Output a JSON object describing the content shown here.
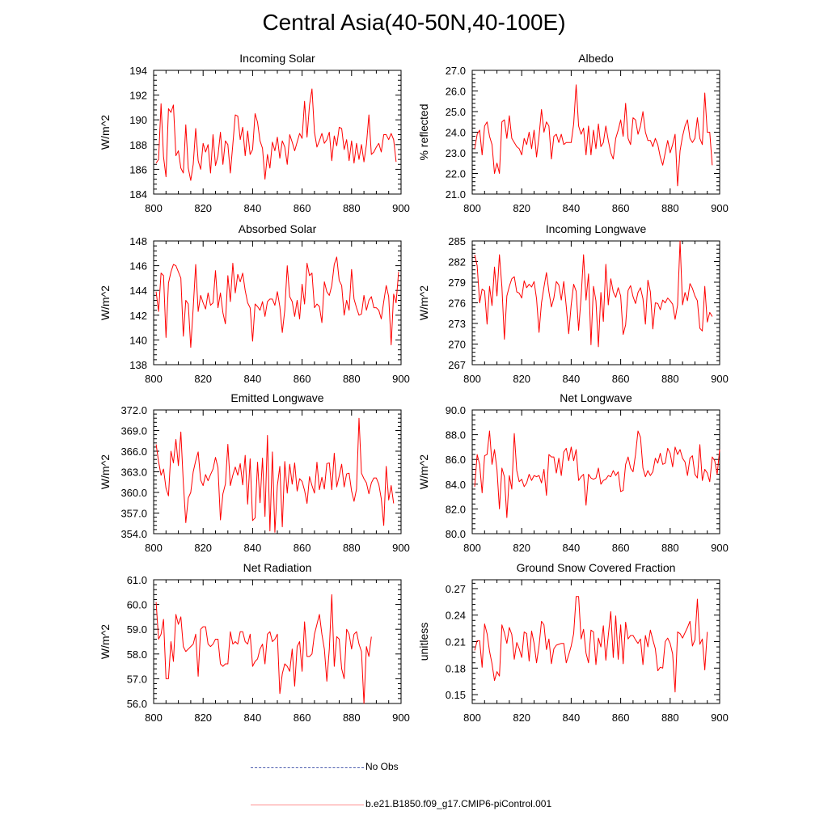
{
  "title": "Central Asia(40-50N,40-100E)",
  "colors": {
    "model": "#ff0000",
    "obs": "#5060b0",
    "axis": "#000000"
  },
  "legend": [
    {
      "label": "No Obs",
      "style": "dashed",
      "color": "#5060b0"
    },
    {
      "label": "b.e21.B1850.f09_g17.CMIP6-piControl.001",
      "style": "solid",
      "color": "#ff0000"
    }
  ],
  "chart_data": [
    {
      "type": "line",
      "title": "Incoming Solar",
      "ylabel": "W/m^2",
      "xlim": [
        800,
        900
      ],
      "xticks": [
        "800",
        "820",
        "840",
        "860",
        "880",
        "900"
      ],
      "ylim": [
        184,
        194
      ],
      "yticks": [
        "184",
        "186",
        "188",
        "190",
        "192",
        "194"
      ],
      "x_start": 801,
      "series": [
        {
          "name": "b.e21.B1850.f09_g17.CMIP6-piControl.001",
          "values": [
            186.5,
            186.8,
            191.3,
            187.0,
            185.4,
            190.9,
            190.6,
            191.2,
            187.1,
            187.5,
            186.1,
            185.7,
            189.6,
            186.1,
            185.1,
            186.4,
            189.3,
            186.7,
            186.0,
            188.1,
            187.4,
            188.0,
            185.7,
            188.8,
            186.3,
            187.1,
            189.0,
            186.4,
            188.3,
            188.0,
            185.7,
            188.0,
            190.4,
            190.3,
            188.4,
            189.4,
            187.1,
            189.1,
            187.2,
            187.6,
            190.5,
            189.8,
            188.3,
            187.7,
            185.2,
            187.2,
            186.1,
            188.2,
            187.5,
            188.6,
            186.9,
            188.3,
            187.8,
            186.4,
            188.8,
            188.2,
            187.5,
            188.2,
            188.9,
            188.5,
            191.5,
            188.6,
            191.2,
            192.5,
            189.0,
            187.8,
            188.3,
            188.9,
            188.1,
            188.4,
            189.0,
            186.7,
            188.7,
            187.9,
            189.4,
            189.3,
            187.6,
            188.4,
            186.7,
            188.3,
            186.5,
            188.1,
            186.8,
            188.0,
            186.6,
            188.0,
            190.4,
            187.2,
            187.4,
            187.8,
            188.1,
            187.4,
            188.8,
            188.8,
            188.4,
            188.9,
            188.4,
            186.6
          ]
        }
      ]
    },
    {
      "type": "line",
      "title": "Albedo",
      "ylabel": "% reflected",
      "xlim": [
        800,
        900
      ],
      "xticks": [
        "800",
        "820",
        "840",
        "860",
        "880",
        "900"
      ],
      "ylim": [
        21,
        27
      ],
      "yticks": [
        "21.0",
        "22.0",
        "23.0",
        "24.0",
        "25.0",
        "26.0",
        "27.0"
      ],
      "x_start": 801,
      "series": [
        {
          "name": "b.e21.B1850.f09_g17.CMIP6-piControl.001",
          "values": [
            23.2,
            23.9,
            24.1,
            22.9,
            24.3,
            24.5,
            23.8,
            23.4,
            22.0,
            22.5,
            22.0,
            24.5,
            24.6,
            23.7,
            24.8,
            23.7,
            23.5,
            23.3,
            23.2,
            22.9,
            23.7,
            23.4,
            24.0,
            23.2,
            24.1,
            22.8,
            23.8,
            25.1,
            24.0,
            24.5,
            24.3,
            22.7,
            23.8,
            23.9,
            23.5,
            23.9,
            23.4,
            23.5,
            23.5,
            23.5,
            24.4,
            26.3,
            24.3,
            23.9,
            24.2,
            22.9,
            24.3,
            22.9,
            24.1,
            23.2,
            24.4,
            23.3,
            23.5,
            24.3,
            23.6,
            23.0,
            22.7,
            23.7,
            24.1,
            24.6,
            23.8,
            25.4,
            23.7,
            23.4,
            24.7,
            24.6,
            23.9,
            24.3,
            25.0,
            24.0,
            23.6,
            23.6,
            23.3,
            23.7,
            23.4,
            22.8,
            22.4,
            23.0,
            23.6,
            23.0,
            23.4,
            23.9,
            21.4,
            23.1,
            23.8,
            24.3,
            24.6,
            23.7,
            23.5,
            23.7,
            24.7,
            23.7,
            23.4,
            25.9,
            24.0,
            24.0,
            22.4
          ]
        }
      ]
    },
    {
      "type": "line",
      "title": "Absorbed Solar",
      "ylabel": "W/m^2",
      "xlim": [
        800,
        900
      ],
      "xticks": [
        "800",
        "820",
        "840",
        "860",
        "880",
        "900"
      ],
      "ylim": [
        138,
        148
      ],
      "yticks": [
        "138",
        "140",
        "142",
        "144",
        "146",
        "148"
      ],
      "x_start": 801,
      "series": [
        {
          "name": "b.e21.B1850.f09_g17.CMIP6-piControl.001",
          "values": [
            143.9,
            142.3,
            145.4,
            145.2,
            140.2,
            144.6,
            145.5,
            146.1,
            146.0,
            145.5,
            145.0,
            140.3,
            143.2,
            142.9,
            139.4,
            142.6,
            146.1,
            142.3,
            143.6,
            143.0,
            142.5,
            143.8,
            142.8,
            143.0,
            145.6,
            142.6,
            143.8,
            142.2,
            141.3,
            145.2,
            143.1,
            146.2,
            143.8,
            145.3,
            144.7,
            145.4,
            144.0,
            143.0,
            142.6,
            139.9,
            142.9,
            142.7,
            142.4,
            143.1,
            141.9,
            143.1,
            143.3,
            143.3,
            142.8,
            143.9,
            142.7,
            140.6,
            142.4,
            146.0,
            143.5,
            143.1,
            141.9,
            143.2,
            141.7,
            144.5,
            142.9,
            146.2,
            145.2,
            145.4,
            142.6,
            142.9,
            142.7,
            141.4,
            144.7,
            143.9,
            143.6,
            144.4,
            146.1,
            146.7,
            144.8,
            144.4,
            142.0,
            143.2,
            142.4,
            145.7,
            143.3,
            142.6,
            142.0,
            142.1,
            143.6,
            142.4,
            143.2,
            143.5,
            142.6,
            142.6,
            142.4,
            141.7,
            143.1,
            144.4,
            143.5,
            139.6,
            143.7,
            143.0,
            145.5
          ]
        }
      ]
    },
    {
      "type": "line",
      "title": "Incoming Longwave",
      "ylabel": "W/m^2",
      "xlim": [
        800,
        900
      ],
      "xticks": [
        "800",
        "820",
        "840",
        "860",
        "880",
        "900"
      ],
      "ylim": [
        267,
        285
      ],
      "yticks": [
        "267",
        "270",
        "273",
        "276",
        "279",
        "282",
        "285"
      ],
      "x_start": 801,
      "series": [
        {
          "name": "b.e21.B1850.f09_g17.CMIP6-piControl.001",
          "values": [
            283.0,
            281.4,
            276.0,
            278.0,
            277.7,
            272.9,
            278.4,
            275.6,
            281.2,
            277.0,
            283.0,
            278.3,
            270.7,
            277.0,
            278.4,
            279.5,
            279.8,
            277.6,
            277.4,
            276.7,
            279.2,
            278.2,
            278.7,
            278.3,
            279.1,
            276.6,
            271.7,
            276.0,
            278.3,
            280.4,
            277.6,
            275.4,
            276.7,
            279.1,
            278.6,
            276.4,
            279.1,
            275.5,
            271.5,
            275.7,
            278.7,
            277.7,
            272.0,
            276.8,
            283.0,
            276.4,
            280.2,
            269.9,
            278.4,
            276.3,
            269.6,
            277.5,
            273.3,
            281.6,
            275.7,
            279.5,
            277.6,
            276.8,
            278.2,
            277.0,
            271.4,
            272.8,
            277.8,
            278.5,
            276.9,
            275.9,
            277.5,
            278.2,
            276.6,
            272.9,
            279.3,
            277.6,
            272.2,
            276.0,
            275.9,
            275.0,
            276.4,
            276.0,
            276.7,
            276.3,
            275.8,
            273.6,
            275.7,
            285.0,
            275.7,
            277.5,
            276.3,
            278.8,
            278.1,
            277.0,
            276.3,
            272.3,
            271.9,
            278.4,
            273.2,
            274.6,
            274.0
          ]
        }
      ]
    },
    {
      "type": "line",
      "title": "Emitted Longwave",
      "ylabel": "W/m^2",
      "xlim": [
        800,
        900
      ],
      "xticks": [
        "800",
        "820",
        "840",
        "860",
        "880",
        "900"
      ],
      "ylim": [
        354,
        372
      ],
      "yticks": [
        "354.0",
        "357.0",
        "360.0",
        "363.0",
        "366.0",
        "369.0",
        "372.0"
      ],
      "x_start": 801,
      "series": [
        {
          "name": "b.e21.B1850.f09_g17.CMIP6-piControl.001",
          "values": [
            367.0,
            364.5,
            362.5,
            363.4,
            360.6,
            359.5,
            366.0,
            364.3,
            367.7,
            363.9,
            368.8,
            361.4,
            355.6,
            359.2,
            360.0,
            363.0,
            364.6,
            365.9,
            361.8,
            361.0,
            362.6,
            361.7,
            362.6,
            363.4,
            365.1,
            363.6,
            356.0,
            359.8,
            361.2,
            367.0,
            361.0,
            362.5,
            363.7,
            362.5,
            364.2,
            361.1,
            365.4,
            358.3,
            364.9,
            355.9,
            356.3,
            364.4,
            358.5,
            365.0,
            356.5,
            368.3,
            354.4,
            365.9,
            354.2,
            361.0,
            363.8,
            355.0,
            364.5,
            359.9,
            364.1,
            361.2,
            364.3,
            360.2,
            362.0,
            361.6,
            360.3,
            358.4,
            362.3,
            361.0,
            359.9,
            364.4,
            360.4,
            362.2,
            360.5,
            364.2,
            364.3,
            360.4,
            365.7,
            360.8,
            362.4,
            364.1,
            360.8,
            362.7,
            362.8,
            360.2,
            358.7,
            360.5,
            370.8,
            362.8,
            362.0,
            361.4,
            359.8,
            361.4,
            362.1,
            362.1,
            361.2,
            359.1,
            355.2,
            363.8,
            358.9,
            361.0,
            358.4
          ]
        }
      ]
    },
    {
      "type": "line",
      "title": "Net Longwave",
      "ylabel": "W/m^2",
      "xlim": [
        800,
        900
      ],
      "xticks": [
        "800",
        "820",
        "840",
        "860",
        "880",
        "900"
      ],
      "ylim": [
        80,
        90
      ],
      "yticks": [
        "80.0",
        "82.0",
        "84.0",
        "86.0",
        "88.0",
        "90.0"
      ],
      "x_start": 801,
      "series": [
        {
          "name": "b.e21.B1850.f09_g17.CMIP6-piControl.001",
          "values": [
            83.8,
            86.4,
            85.6,
            83.3,
            86.3,
            86.4,
            88.3,
            85.6,
            86.8,
            85.2,
            82.0,
            85.3,
            84.6,
            81.3,
            84.7,
            83.6,
            88.1,
            85.1,
            84.2,
            84.4,
            83.8,
            84.1,
            84.8,
            84.3,
            84.7,
            84.6,
            84.7,
            84.1,
            85.2,
            83.1,
            86.4,
            86.2,
            86.2,
            84.9,
            86.1,
            84.7,
            86.6,
            86.9,
            85.9,
            87.0,
            85.9,
            86.8,
            84.3,
            84.6,
            84.8,
            82.3,
            84.8,
            84.5,
            84.4,
            84.5,
            85.3,
            84.0,
            84.3,
            84.4,
            84.7,
            84.6,
            85.1,
            84.7,
            85.0,
            83.4,
            83.5,
            85.6,
            86.2,
            85.3,
            85.0,
            86.4,
            88.3,
            87.8,
            85.3,
            84.6,
            85.1,
            84.7,
            85.0,
            86.1,
            85.7,
            86.5,
            85.6,
            85.7,
            86.9,
            86.5,
            85.4,
            87.0,
            86.4,
            86.8,
            86.1,
            85.8,
            84.7,
            86.1,
            86.3,
            84.8,
            84.5,
            87.2,
            84.3,
            85.2,
            84.9,
            84.2,
            86.2,
            85.9,
            84.8,
            86.8
          ]
        }
      ]
    },
    {
      "type": "line",
      "title": "Net Radiation",
      "ylabel": "W/m^2",
      "xlim": [
        800,
        900
      ],
      "xticks": [
        "800",
        "820",
        "840",
        "860",
        "880",
        "900"
      ],
      "ylim": [
        56,
        61
      ],
      "yticks": [
        "56.0",
        "57.0",
        "58.0",
        "59.0",
        "60.0",
        "61.0"
      ],
      "x_start": 801,
      "series": [
        {
          "name": "b.e21.B1850.f09_g17.CMIP6-piControl.001",
          "values": [
            60.1,
            58.6,
            58.8,
            59.4,
            57.0,
            57.0,
            58.5,
            57.7,
            59.6,
            59.2,
            59.5,
            58.3,
            58.1,
            58.2,
            58.3,
            58.4,
            58.8,
            57.1,
            59.0,
            59.1,
            59.1,
            58.4,
            58.3,
            58.4,
            58.6,
            58.6,
            57.6,
            57.5,
            57.6,
            57.6,
            58.9,
            58.4,
            58.5,
            58.4,
            58.9,
            58.9,
            58.5,
            58.4,
            58.8,
            57.5,
            57.7,
            57.8,
            58.2,
            58.4,
            57.6,
            58.8,
            58.9,
            58.5,
            58.6,
            58.8,
            56.4,
            57.2,
            57.6,
            57.5,
            57.3,
            58.2,
            56.7,
            58.3,
            58.5,
            57.3,
            59.3,
            57.9,
            57.9,
            58.0,
            58.8,
            59.2,
            59.6,
            58.8,
            58.2,
            56.9,
            58.2,
            60.4,
            57.5,
            58.7,
            58.6,
            57.4,
            57.0,
            59.0,
            58.8,
            58.2,
            58.8,
            58.9,
            58.4,
            58.1,
            56.0,
            58.3,
            57.9,
            58.7
          ]
        }
      ]
    },
    {
      "type": "line",
      "title": "Ground Snow Covered Fraction",
      "ylabel": "unitless",
      "xlim": [
        800,
        900
      ],
      "xticks": [
        "800",
        "820",
        "840",
        "860",
        "880",
        "900"
      ],
      "ylim": [
        0.14,
        0.28
      ],
      "yticks": [
        "0.15",
        "0.18",
        "0.21",
        "0.24",
        "0.27"
      ],
      "x_start": 801,
      "series": [
        {
          "name": "b.e21.B1850.f09_g17.CMIP6-piControl.001",
          "values": [
            0.2,
            0.211,
            0.211,
            0.181,
            0.23,
            0.219,
            0.199,
            0.185,
            0.166,
            0.176,
            0.171,
            0.229,
            0.22,
            0.208,
            0.226,
            0.218,
            0.19,
            0.209,
            0.202,
            0.192,
            0.221,
            0.219,
            0.188,
            0.222,
            0.208,
            0.186,
            0.205,
            0.233,
            0.229,
            0.201,
            0.213,
            0.185,
            0.202,
            0.206,
            0.207,
            0.208,
            0.208,
            0.186,
            0.195,
            0.205,
            0.219,
            0.261,
            0.261,
            0.213,
            0.224,
            0.197,
            0.186,
            0.223,
            0.221,
            0.184,
            0.214,
            0.204,
            0.228,
            0.189,
            0.217,
            0.244,
            0.192,
            0.239,
            0.19,
            0.229,
            0.185,
            0.232,
            0.213,
            0.217,
            0.217,
            0.212,
            0.208,
            0.213,
            0.184,
            0.217,
            0.204,
            0.223,
            0.212,
            0.202,
            0.177,
            0.181,
            0.18,
            0.21,
            0.214,
            0.208,
            0.196,
            0.153,
            0.221,
            0.219,
            0.214,
            0.22,
            0.226,
            0.233,
            0.205,
            0.212,
            0.258,
            0.207,
            0.213,
            0.178,
            0.221
          ]
        }
      ]
    }
  ]
}
